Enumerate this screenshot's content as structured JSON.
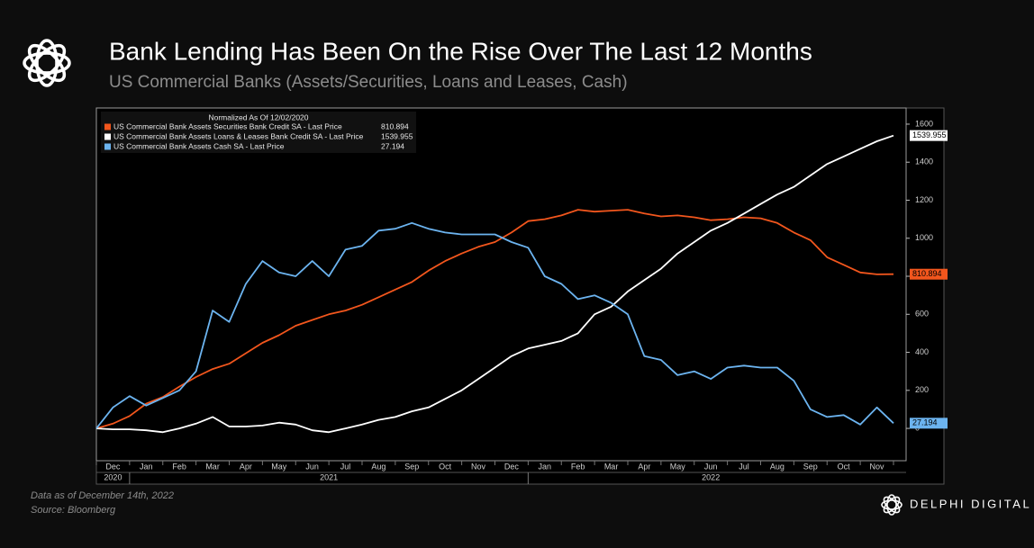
{
  "chart_data": {
    "type": "line",
    "title": "Bank Lending Has Been On the Rise Over The Last 12 Months",
    "subtitle": "US Commercial Banks (Assets/Securities, Loans and Leases, Cash)",
    "legend_title": "Normalized As Of 12/02/2020",
    "notes": [
      "Data as of December  14th, 2022",
      "Source: Bloomberg"
    ],
    "brand": "DELPHI DIGITAL",
    "categories": [
      null,
      "Dec",
      null,
      "Jan",
      null,
      "Feb",
      null,
      "Mar",
      null,
      "Apr",
      null,
      "May",
      null,
      "Jun",
      null,
      "Jul",
      null,
      "Aug",
      null,
      "Sep",
      null,
      "Oct",
      null,
      "Nov",
      null,
      "Dec",
      null,
      "Jan",
      null,
      "Feb",
      null,
      "Mar",
      null,
      "Apr",
      null,
      "May",
      null,
      "Jun",
      null,
      "Jul",
      null,
      "Aug",
      null,
      "Sep",
      null,
      "Oct",
      null,
      "Nov",
      null
    ],
    "years": [
      "2020",
      "2021",
      "2022"
    ],
    "series": [
      {
        "name": "US Commercial Bank Assets Securities Bank Credit SA - Last Price",
        "color": "#f2561d",
        "values": [
          0,
          25,
          65,
          130,
          165,
          220,
          270,
          312,
          340,
          395,
          450,
          490,
          540,
          570,
          600,
          620,
          650,
          690,
          730,
          770,
          830,
          880,
          920,
          955,
          980,
          1030,
          1090,
          1100,
          1120,
          1150,
          1140,
          1145,
          1150,
          1130,
          1115,
          1120,
          1110,
          1095,
          1100,
          1110,
          1105,
          1080,
          1030,
          990,
          900,
          860,
          820,
          810,
          810.894
        ]
      },
      {
        "name": "US Commercial Bank Assets Loans & Leases Bank Credit SA - Last Price",
        "color": "#ffffff",
        "values": [
          0,
          -5,
          -5,
          -10,
          -20,
          0,
          25,
          60,
          10,
          10,
          15,
          30,
          20,
          -10,
          -20,
          0,
          20,
          45,
          60,
          90,
          110,
          155,
          200,
          260,
          320,
          380,
          420,
          440,
          460,
          500,
          600,
          640,
          720,
          780,
          840,
          920,
          980,
          1040,
          1080,
          1130,
          1180,
          1230,
          1270,
          1330,
          1390,
          1430,
          1470,
          1510,
          1539.955
        ]
      },
      {
        "name": "US Commercial Bank Assets Cash SA - Last Price",
        "color": "#6cb4f0",
        "values": [
          0,
          110,
          170,
          120,
          160,
          200,
          300,
          620,
          560,
          760,
          880,
          820,
          800,
          880,
          800,
          940,
          960,
          1040,
          1050,
          1080,
          1050,
          1030,
          1020,
          1020,
          1020,
          980,
          950,
          800,
          760,
          680,
          700,
          660,
          600,
          380,
          360,
          280,
          300,
          260,
          320,
          330,
          320,
          320,
          250,
          100,
          60,
          70,
          20,
          110,
          27.194
        ]
      }
    ],
    "ylim": [
      -170,
      1685
    ],
    "yticks": [
      0,
      200,
      400,
      600,
      800,
      1000,
      1200,
      1400,
      1600
    ],
    "grid": false
  }
}
